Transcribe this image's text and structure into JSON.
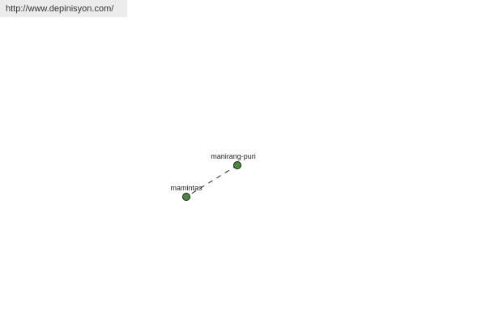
{
  "banner": {
    "url": "http://www.depinisyon.com/"
  },
  "diagram": {
    "node_color": "#4a8a3c",
    "nodes": [
      {
        "label": "manirang-puri"
      },
      {
        "label": "mamintas"
      }
    ],
    "edges": [
      {
        "from": "manirang-puri",
        "to": "mamintas",
        "style": "dashed"
      }
    ]
  }
}
